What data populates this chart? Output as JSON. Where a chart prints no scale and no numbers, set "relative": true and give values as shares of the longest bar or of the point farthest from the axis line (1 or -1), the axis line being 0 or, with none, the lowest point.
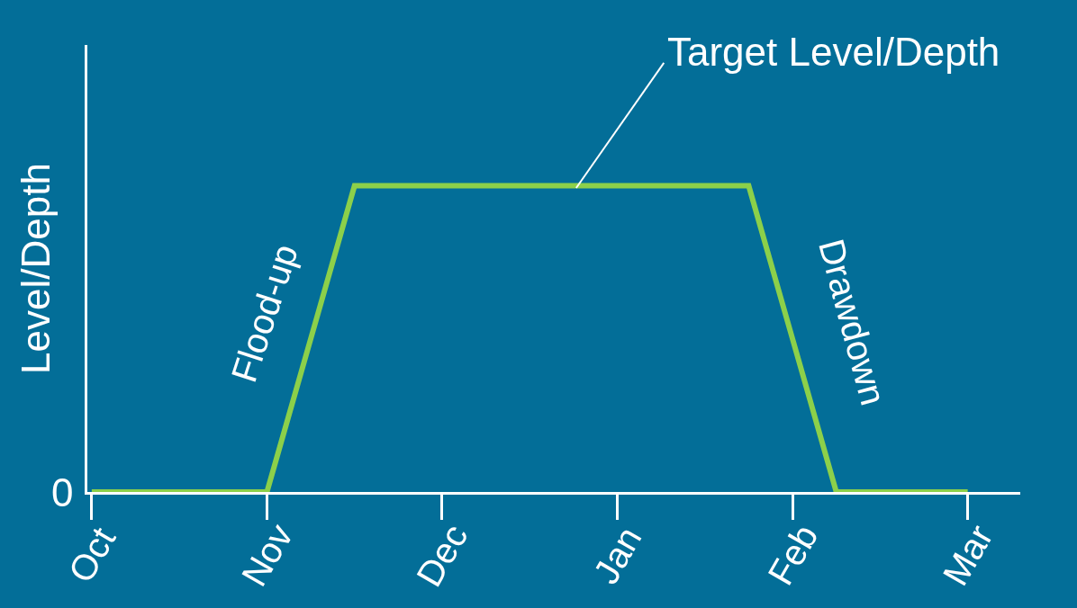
{
  "chart_data": {
    "type": "line",
    "relative": true,
    "ylabel": "Level/Depth",
    "color": "#8cd04a",
    "categories": [
      "Oct",
      null,
      null,
      null,
      "Nov",
      null,
      null,
      null,
      "Dec",
      null,
      null,
      null,
      "Jan",
      null,
      null,
      null,
      "Feb",
      null,
      null,
      null,
      "Mar"
    ],
    "values": [
      0,
      0,
      0,
      0,
      0,
      0.5,
      1,
      1,
      1,
      1,
      1,
      1,
      1,
      1,
      1,
      1,
      0.5,
      0,
      0,
      0,
      0
    ],
    "annotations": [
      "Target Level/Depth",
      "Flood-up",
      "Drawdown",
      "0"
    ]
  }
}
